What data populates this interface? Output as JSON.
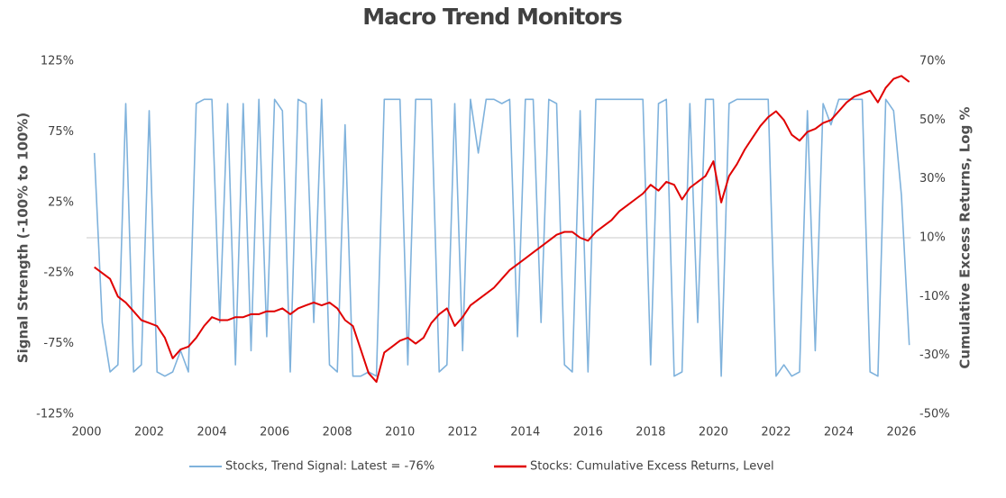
{
  "chart_data": {
    "type": "line",
    "title": "Macro Trend Monitors",
    "ylabel": "Signal Strength (-100% to 100%)",
    "y2label": "Cumulative Excess Returns, Log %",
    "xlim": [
      2000,
      2026.3
    ],
    "xticks": [
      2000,
      2002,
      2004,
      2006,
      2008,
      2010,
      2012,
      2014,
      2016,
      2018,
      2020,
      2022,
      2024,
      2026
    ],
    "ylim": [
      -125,
      125
    ],
    "yticks": [
      {
        "value": 125,
        "label": "125%"
      },
      {
        "value": 75,
        "label": "75%"
      },
      {
        "value": 25,
        "label": "25%"
      },
      {
        "value": -25,
        "label": "-25%"
      },
      {
        "value": -75,
        "label": "-75%"
      },
      {
        "value": -125,
        "label": "-125%"
      }
    ],
    "y2lim": [
      -50,
      70
    ],
    "y2ticks": [
      {
        "value": 70,
        "label": "70%"
      },
      {
        "value": 50,
        "label": "50%"
      },
      {
        "value": 30,
        "label": "30%"
      },
      {
        "value": 10,
        "label": "10%"
      },
      {
        "value": -10,
        "label": "-10%"
      },
      {
        "value": -30,
        "label": "-30%"
      },
      {
        "value": -50,
        "label": "-50%"
      }
    ],
    "legend": "bottom",
    "x": [
      2000.25,
      2000.5,
      2000.75,
      2001,
      2001.25,
      2001.5,
      2001.75,
      2002,
      2002.25,
      2002.5,
      2002.75,
      2003,
      2003.25,
      2003.5,
      2003.75,
      2004,
      2004.25,
      2004.5,
      2004.75,
      2005,
      2005.25,
      2005.5,
      2005.75,
      2006,
      2006.25,
      2006.5,
      2006.75,
      2007,
      2007.25,
      2007.5,
      2007.75,
      2008,
      2008.25,
      2008.5,
      2008.75,
      2009,
      2009.25,
      2009.5,
      2009.75,
      2010,
      2010.25,
      2010.5,
      2010.75,
      2011,
      2011.25,
      2011.5,
      2011.75,
      2012,
      2012.25,
      2012.5,
      2012.75,
      2013,
      2013.25,
      2013.5,
      2013.75,
      2014,
      2014.25,
      2014.5,
      2014.75,
      2015,
      2015.25,
      2015.5,
      2015.75,
      2016,
      2016.25,
      2016.5,
      2016.75,
      2017,
      2017.25,
      2017.5,
      2017.75,
      2018,
      2018.25,
      2018.5,
      2018.75,
      2019,
      2019.25,
      2019.5,
      2019.75,
      2020,
      2020.25,
      2020.5,
      2020.75,
      2021,
      2021.25,
      2021.5,
      2021.75,
      2022,
      2022.25,
      2022.5,
      2022.75,
      2023,
      2023.25,
      2023.5,
      2023.75,
      2024,
      2024.25,
      2024.5,
      2024.75,
      2025,
      2025.25,
      2025.5,
      2025.75,
      2026,
      2026.25
    ],
    "series": [
      {
        "name": "Stocks, Trend Signal: Latest = -76%",
        "color": "#7fb2dc",
        "axis": "y",
        "values": [
          60,
          -60,
          -95,
          -90,
          95,
          -95,
          -90,
          90,
          -95,
          -98,
          -95,
          -80,
          -95,
          95,
          98,
          98,
          -60,
          95,
          -90,
          95,
          -80,
          98,
          -70,
          98,
          90,
          -95,
          98,
          95,
          -60,
          98,
          -90,
          -95,
          80,
          -98,
          -98,
          -95,
          -98,
          98,
          98,
          98,
          -90,
          98,
          98,
          98,
          -95,
          -90,
          95,
          -80,
          98,
          60,
          98,
          98,
          95,
          98,
          -70,
          98,
          98,
          -60,
          98,
          95,
          -90,
          -95,
          90,
          -95,
          98,
          98,
          98,
          98,
          98,
          98,
          98,
          -90,
          95,
          98,
          -98,
          -95,
          95,
          -60,
          98,
          98,
          -98,
          95,
          98,
          98,
          98,
          98,
          98,
          -98,
          -90,
          -98,
          -95,
          90,
          -80,
          95,
          80,
          98,
          98,
          98,
          98,
          -95,
          -98,
          98,
          90,
          30,
          -76
        ]
      },
      {
        "name": "Stocks:  Cumulative Excess Returns, Level",
        "color": "#e00000",
        "axis": "y2",
        "values": [
          0,
          -2,
          -4,
          -10,
          -12,
          -15,
          -18,
          -19,
          -20,
          -24,
          -31,
          -28,
          -27,
          -24,
          -20,
          -17,
          -18,
          -18,
          -17,
          -17,
          -16,
          -16,
          -15,
          -15,
          -14,
          -16,
          -14,
          -13,
          -12,
          -13,
          -12,
          -14,
          -18,
          -20,
          -28,
          -36,
          -39,
          -29,
          -27,
          -25,
          -24,
          -26,
          -24,
          -19,
          -16,
          -14,
          -20,
          -17,
          -13,
          -11,
          -9,
          -7,
          -4,
          -1,
          1,
          3,
          5,
          7,
          9,
          11,
          12,
          12,
          10,
          9,
          12,
          14,
          16,
          19,
          21,
          23,
          25,
          28,
          26,
          29,
          28,
          23,
          27,
          29,
          31,
          36,
          22,
          31,
          35,
          40,
          44,
          48,
          51,
          53,
          50,
          45,
          43,
          46,
          47,
          49,
          50,
          53,
          56,
          58,
          59,
          60,
          56,
          61,
          64,
          65,
          63
        ]
      }
    ]
  }
}
